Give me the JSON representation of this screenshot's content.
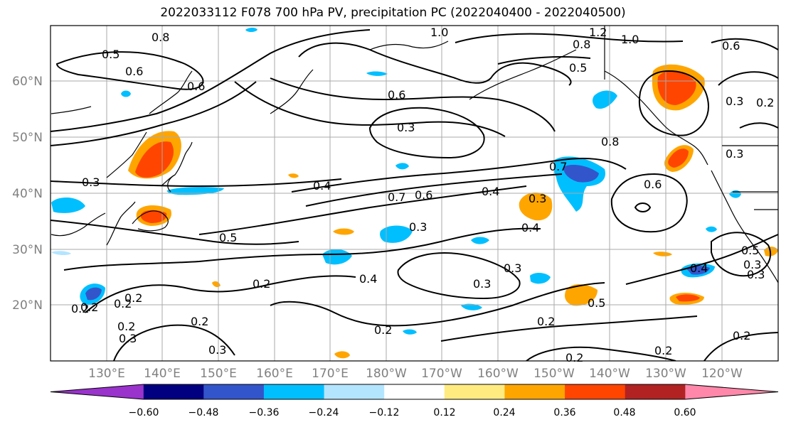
{
  "title": "2022033112 F078 700 hPa PV, precipitation PC (2022040400 - 2022040500)",
  "lat_labels": [
    "60°N",
    "50°N",
    "40°N",
    "30°N",
    "20°N"
  ],
  "lon_labels": [
    "130°E",
    "140°E",
    "150°E",
    "160°E",
    "170°E",
    "180°W",
    "170°W",
    "160°W",
    "150°W",
    "140°W",
    "130°W",
    "120°W"
  ],
  "colorbar": {
    "ticks": [
      "−0.60",
      "−0.48",
      "−0.36",
      "−0.24",
      "−0.12",
      "0.12",
      "0.24",
      "0.36",
      "0.48",
      "0.60"
    ],
    "colors": [
      "#9933cc",
      "#000080",
      "#3355cc",
      "#00bfff",
      "#b3e5ff",
      "#ffffff",
      "#ffeb80",
      "#ffa500",
      "#ff4500",
      "#b22222",
      "#ff88aa"
    ]
  },
  "contour_labels": [
    "1.0",
    "1.2",
    "1.0",
    "0.8",
    "0.5",
    "0.6",
    "0.5",
    "0.6",
    "0.8",
    "0.6",
    "0.3",
    "0.2",
    "0.6",
    "0.3",
    "0.8",
    "0.7",
    "0.4",
    "0.7",
    "0.6",
    "0.4",
    "0.3",
    "0.6",
    "0.3",
    "0.4",
    "0.5",
    "0.3",
    "0.3",
    "0.4",
    "0.2",
    "0.3",
    "0.2",
    "0.5",
    "0.2",
    "0.4",
    "0.3",
    "0.5",
    "0.2",
    "0.2",
    "0.2",
    "0.3",
    "0.2",
    "0.2",
    "0.2",
    "0.3",
    "0.2",
    "0.2",
    "0.2",
    "0.3",
    "0.3"
  ],
  "colors": {
    "contour": "#000000",
    "grid": "#aaaaaa",
    "coast": "#000000",
    "axis_label": "#808080"
  }
}
